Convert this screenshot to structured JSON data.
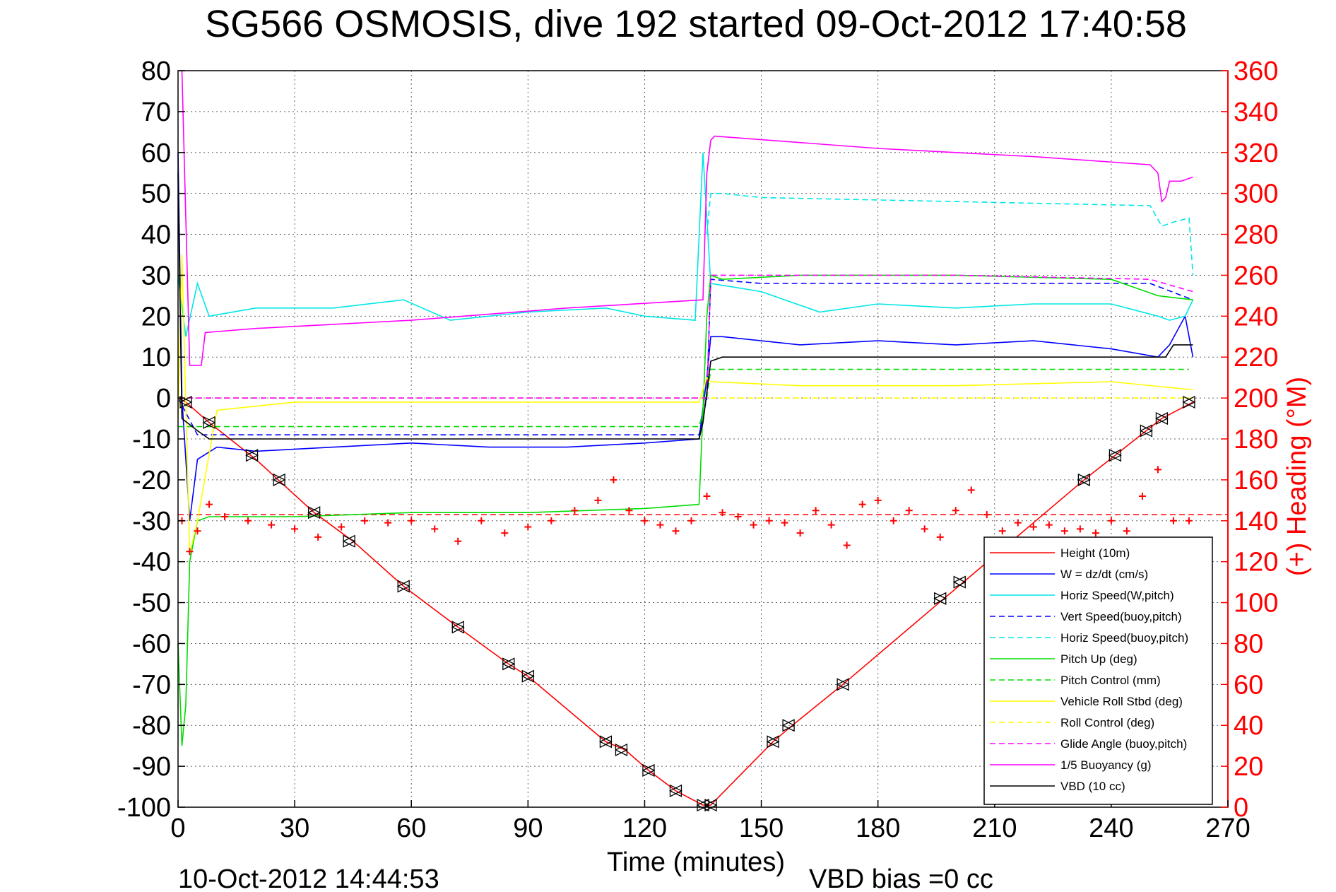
{
  "chart_data": {
    "type": "line",
    "title": "SG566 OSMOSIS, dive 192 started 09-Oct-2012 17:40:58",
    "xlabel": "Time (minutes)",
    "ylabel": "",
    "ylabel_right": "(+) Heading (°M)",
    "footer_left": "10-Oct-2012 14:44:53",
    "footer_right": "VBD bias =0 cc",
    "xlim": [
      0,
      270
    ],
    "ylim": [
      -100,
      80
    ],
    "ylim_right": [
      0,
      360
    ],
    "x_ticks": [
      0,
      30,
      60,
      90,
      120,
      150,
      180,
      210,
      240,
      270
    ],
    "y_ticks": [
      -100,
      -90,
      -80,
      -70,
      -60,
      -50,
      -40,
      -30,
      -20,
      -10,
      0,
      10,
      20,
      30,
      40,
      50,
      60,
      70,
      80
    ],
    "y_ticks_right": [
      0,
      20,
      40,
      60,
      80,
      100,
      120,
      140,
      160,
      180,
      200,
      220,
      240,
      260,
      280,
      300,
      320,
      340,
      360
    ],
    "x_tick_labels": [
      "0",
      "30",
      "60",
      "90",
      "120",
      "150",
      "180",
      "210",
      "240",
      "270"
    ],
    "y_tick_labels": [
      "-100",
      "-90",
      "-80",
      "-70",
      "-60",
      "-50",
      "-40",
      "-30",
      "-20",
      "-10",
      "0",
      "10",
      "20",
      "30",
      "40",
      "50",
      "60",
      "70",
      "80"
    ],
    "y_tick_labels_right": [
      "0",
      "20",
      "40",
      "60",
      "80",
      "100",
      "120",
      "140",
      "160",
      "180",
      "200",
      "220",
      "240",
      "260",
      "280",
      "300",
      "320",
      "340",
      "360"
    ],
    "grid": true,
    "legend_position": "bottom-right",
    "series": [
      {
        "name": "Height (10m)",
        "color": "#ff0000",
        "style": "solid",
        "x": [
          0,
          2,
          8,
          20,
          35,
          45,
          58,
          72,
          85,
          90,
          110,
          115,
          121,
          128,
          135,
          137,
          153,
          158,
          171,
          197,
          202,
          233,
          241,
          249,
          253,
          261
        ],
        "y": [
          0,
          -1,
          -6,
          -15,
          -28,
          -35,
          -46,
          -56,
          -65,
          -68,
          -84,
          -86,
          -91,
          -96,
          -99.5,
          -99.5,
          -84,
          -80,
          -70,
          -49,
          -45,
          -20,
          -14,
          -8,
          -5,
          -1
        ]
      },
      {
        "name": "W = dz/dt (cm/s)",
        "color": "#0000ff",
        "style": "solid",
        "x": [
          0,
          1,
          3,
          5,
          10,
          20,
          40,
          60,
          80,
          100,
          120,
          134,
          136,
          137,
          140,
          160,
          180,
          200,
          220,
          240,
          252,
          255,
          259,
          261
        ],
        "y": [
          60,
          0,
          -30,
          -15,
          -12,
          -13,
          -12,
          -11,
          -12,
          -12,
          -11,
          -10,
          5,
          15,
          15,
          13,
          14,
          13,
          14,
          12,
          10,
          13,
          20,
          10
        ]
      },
      {
        "name": "Horiz Speed(W,pitch)",
        "color": "#00e6e6",
        "style": "solid",
        "x": [
          0,
          2,
          5,
          8,
          20,
          40,
          58,
          70,
          90,
          110,
          120,
          133,
          135,
          137,
          150,
          165,
          180,
          200,
          220,
          240,
          252,
          255,
          259,
          261
        ],
        "y": [
          30,
          15,
          28,
          20,
          22,
          22,
          24,
          19,
          21,
          22,
          20,
          19,
          60,
          28,
          26,
          21,
          23,
          22,
          23,
          23,
          20,
          19,
          20,
          24
        ]
      },
      {
        "name": "Vert Speed(buoy,pitch)",
        "color": "#0000ff",
        "style": "dashed",
        "x": [
          0,
          5,
          134,
          136,
          137,
          150,
          200,
          250,
          261
        ],
        "y": [
          0,
          -9,
          -9,
          0,
          29,
          28,
          28,
          28,
          24
        ]
      },
      {
        "name": "Horiz Speed(buoy,pitch)",
        "color": "#00e6e6",
        "style": "dashed",
        "x": [
          136,
          137,
          140,
          150,
          200,
          250,
          253,
          256,
          260,
          261
        ],
        "y": [
          40,
          50,
          50,
          49,
          48,
          47,
          42,
          43,
          44,
          30
        ]
      },
      {
        "name": "Pitch Up (deg)",
        "color": "#00dd00",
        "style": "solid",
        "x": [
          0,
          1,
          2,
          3,
          5,
          8,
          30,
          60,
          90,
          120,
          134,
          136,
          137,
          140,
          160,
          200,
          240,
          252,
          261
        ],
        "y": [
          -60,
          -85,
          -75,
          -40,
          -30,
          -29,
          -29,
          -28,
          -28,
          -27,
          -26,
          20,
          30,
          29,
          30,
          30,
          29,
          25,
          24
        ]
      },
      {
        "name": "Pitch Control (mm)",
        "color": "#00dd00",
        "style": "dashed",
        "x": [
          0,
          5,
          134,
          136,
          137,
          260
        ],
        "y": [
          -7,
          -7,
          -7,
          0,
          7,
          7
        ]
      },
      {
        "name": "Vehicle Roll Stbd (deg)",
        "color": "#ffff00",
        "style": "solid",
        "x": [
          0,
          1,
          3,
          5,
          10,
          30,
          60,
          90,
          120,
          134,
          136,
          137,
          160,
          200,
          240,
          261
        ],
        "y": [
          -5,
          35,
          -38,
          -30,
          -3,
          -1,
          -1,
          -1,
          -1,
          -1,
          5,
          4,
          3,
          3,
          4,
          2
        ]
      },
      {
        "name": "Roll Control (deg)",
        "color": "#ffff00",
        "style": "dashed",
        "x": [
          0,
          134,
          136,
          261
        ],
        "y": [
          0,
          0,
          0,
          0
        ]
      },
      {
        "name": "Glide Angle (buoy,pitch)",
        "color": "#ff00ff",
        "style": "dashed",
        "x": [
          0,
          134,
          136,
          137,
          200,
          250,
          261
        ],
        "y": [
          0,
          0,
          0,
          30,
          30,
          29,
          26
        ]
      },
      {
        "name": "1/5 Buoyancy (g)",
        "color": "#ff00ff",
        "style": "solid",
        "x": [
          1,
          3,
          6,
          7,
          20,
          60,
          100,
          135,
          136,
          137,
          138,
          180,
          220,
          250,
          252,
          253,
          254,
          255,
          258,
          261
        ],
        "y": [
          80,
          8,
          8,
          16,
          17,
          19,
          22,
          24,
          55,
          63,
          64,
          61,
          59,
          57,
          55,
          48,
          49,
          53,
          53,
          54
        ]
      },
      {
        "name": "VBD (10 cc)",
        "color": "#000000",
        "style": "solid",
        "x": [
          0,
          1,
          5,
          8,
          134,
          135,
          137,
          140,
          156,
          200,
          254,
          256,
          261
        ],
        "y": [
          55,
          -5,
          -8,
          -10,
          -10,
          -6,
          9,
          10,
          10,
          10,
          10,
          13,
          13
        ]
      }
    ],
    "heading": {
      "name": "Heading",
      "color": "#ff0000",
      "marker": "+",
      "x": [
        1,
        3,
        5,
        8,
        12,
        18,
        24,
        30,
        36,
        42,
        48,
        54,
        60,
        66,
        72,
        78,
        84,
        90,
        96,
        102,
        108,
        112,
        116,
        120,
        124,
        128,
        132,
        136,
        140,
        144,
        148,
        152,
        156,
        160,
        164,
        168,
        172,
        176,
        180,
        184,
        188,
        192,
        196,
        200,
        204,
        208,
        212,
        216,
        220,
        224,
        228,
        232,
        236,
        240,
        244,
        248,
        252,
        256,
        260
      ],
      "y": [
        140,
        125,
        135,
        148,
        142,
        140,
        138,
        136,
        132,
        137,
        140,
        139,
        140,
        136,
        130,
        140,
        134,
        137,
        140,
        145,
        150,
        160,
        145,
        140,
        138,
        135,
        140,
        152,
        144,
        142,
        138,
        140,
        139,
        134,
        145,
        138,
        128,
        148,
        150,
        140,
        145,
        136,
        132,
        145,
        155,
        143,
        135,
        139,
        137,
        138,
        135,
        136,
        134,
        140,
        135,
        152,
        165,
        140,
        140
      ]
    },
    "heading_target": {
      "name": "Heading target",
      "color": "#ff0000",
      "style": "dashed",
      "value": 143
    },
    "height_markers": {
      "x": [
        2,
        8,
        19,
        26,
        35,
        44,
        58,
        72,
        85,
        90,
        110,
        114,
        121,
        128,
        135,
        137,
        153,
        157,
        171,
        196,
        201,
        233,
        241,
        249,
        253,
        260
      ],
      "y": [
        -1,
        -6,
        -14,
        -20,
        -28,
        -35,
        -46,
        -56,
        -65,
        -68,
        -84,
        -86,
        -91,
        -96,
        -99.5,
        -99.5,
        -84,
        -80,
        -70,
        -49,
        -45,
        -20,
        -14,
        -8,
        -5,
        -1
      ]
    }
  }
}
